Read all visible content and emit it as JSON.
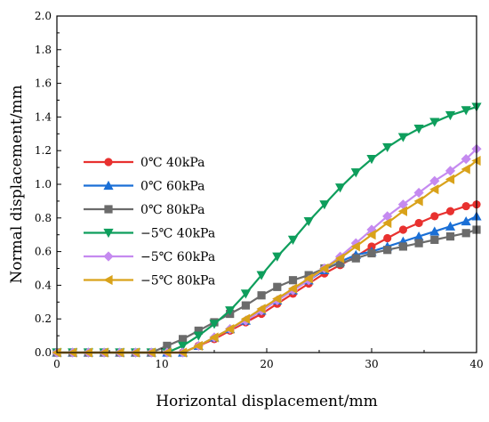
{
  "chart_data": {
    "type": "line",
    "title": "",
    "xlabel": "Horizontal displacement/mm",
    "ylabel": "Normal displacement/mm",
    "xlim": [
      0,
      40
    ],
    "ylim": [
      0,
      2.0
    ],
    "x_ticks": [
      "0",
      "10",
      "20",
      "30",
      "40"
    ],
    "y_ticks": [
      "0.0",
      "0.2",
      "0.4",
      "0.6",
      "0.8",
      "1.0",
      "1.2",
      "1.4",
      "1.6",
      "1.8",
      "2.0"
    ],
    "grid": false,
    "legend_position": "left-middle",
    "series": [
      {
        "name": "0℃ 40kPa",
        "color": "#e8312f",
        "marker": "circle",
        "x": [
          0,
          1.5,
          3,
          4.5,
          6,
          7.5,
          9,
          10.5,
          12,
          13.5,
          15,
          16.5,
          18,
          19.5,
          21,
          22.5,
          24,
          25.5,
          27,
          28.5,
          30,
          31.5,
          33,
          34.5,
          36,
          37.5,
          39,
          40
        ],
        "y": [
          0,
          0,
          0,
          0,
          0,
          0,
          0,
          0,
          0,
          0.04,
          0.08,
          0.13,
          0.18,
          0.23,
          0.29,
          0.35,
          0.41,
          0.47,
          0.52,
          0.57,
          0.63,
          0.68,
          0.73,
          0.77,
          0.81,
          0.84,
          0.87,
          0.88
        ]
      },
      {
        "name": "0℃ 60kPa",
        "color": "#1a6fd6",
        "marker": "triangle-up",
        "x": [
          0,
          1.5,
          3,
          4.5,
          6,
          7.5,
          9,
          10.5,
          12,
          13.5,
          15,
          16.5,
          18,
          19.5,
          21,
          22.5,
          24,
          25.5,
          27,
          28.5,
          30,
          31.5,
          33,
          34.5,
          36,
          37.5,
          39,
          40
        ],
        "y": [
          0,
          0,
          0,
          0,
          0,
          0,
          0,
          0,
          0,
          0.04,
          0.09,
          0.14,
          0.19,
          0.25,
          0.31,
          0.37,
          0.43,
          0.49,
          0.54,
          0.58,
          0.6,
          0.63,
          0.66,
          0.69,
          0.72,
          0.75,
          0.78,
          0.81
        ]
      },
      {
        "name": "0℃ 80kPa",
        "color": "#6b6b6b",
        "marker": "square",
        "x": [
          0,
          1.5,
          3,
          4.5,
          6,
          7.5,
          9,
          10.5,
          12,
          13.5,
          15,
          16.5,
          18,
          19.5,
          21,
          22.5,
          24,
          25.5,
          27,
          28.5,
          30,
          31.5,
          33,
          34.5,
          36,
          37.5,
          39,
          40
        ],
        "y": [
          0,
          0,
          0,
          0,
          0,
          0,
          0,
          0.04,
          0.08,
          0.13,
          0.18,
          0.23,
          0.28,
          0.34,
          0.39,
          0.43,
          0.46,
          0.5,
          0.53,
          0.56,
          0.59,
          0.61,
          0.63,
          0.65,
          0.67,
          0.69,
          0.71,
          0.73
        ]
      },
      {
        "name": "−5℃ 40kPa",
        "color": "#0e9e5c",
        "marker": "triangle-down",
        "x": [
          0,
          1.5,
          3,
          4.5,
          6,
          7.5,
          9,
          10.5,
          12,
          13.5,
          15,
          16.5,
          18,
          19.5,
          21,
          22.5,
          24,
          25.5,
          27,
          28.5,
          30,
          31.5,
          33,
          34.5,
          36,
          37.5,
          39,
          40
        ],
        "y": [
          0,
          0,
          0,
          0,
          0,
          0,
          0,
          0,
          0.04,
          0.1,
          0.17,
          0.25,
          0.35,
          0.46,
          0.57,
          0.67,
          0.78,
          0.88,
          0.98,
          1.07,
          1.15,
          1.22,
          1.28,
          1.33,
          1.37,
          1.41,
          1.44,
          1.46
        ]
      },
      {
        "name": "−5℃ 60kPa",
        "color": "#c58af0",
        "marker": "diamond",
        "x": [
          0,
          1.5,
          3,
          4.5,
          6,
          7.5,
          9,
          10.5,
          12,
          13.5,
          15,
          16.5,
          18,
          19.5,
          21,
          22.5,
          24,
          25.5,
          27,
          28.5,
          30,
          31.5,
          33,
          34.5,
          36,
          37.5,
          39,
          40
        ],
        "y": [
          0,
          0,
          0,
          0,
          0,
          0,
          0,
          0,
          0,
          0.04,
          0.09,
          0.14,
          0.19,
          0.25,
          0.31,
          0.37,
          0.43,
          0.5,
          0.57,
          0.65,
          0.73,
          0.81,
          0.88,
          0.95,
          1.02,
          1.08,
          1.15,
          1.21
        ]
      },
      {
        "name": "−5℃ 80kPa",
        "color": "#d9a21a",
        "marker": "triangle-left",
        "x": [
          0,
          1.5,
          3,
          4.5,
          6,
          7.5,
          9,
          10.5,
          12,
          13.5,
          15,
          16.5,
          18,
          19.5,
          21,
          22.5,
          24,
          25.5,
          27,
          28.5,
          30,
          31.5,
          33,
          34.5,
          36,
          37.5,
          39,
          40
        ],
        "y": [
          0,
          0,
          0,
          0,
          0,
          0,
          0,
          0,
          0,
          0.04,
          0.09,
          0.14,
          0.2,
          0.26,
          0.32,
          0.38,
          0.44,
          0.5,
          0.56,
          0.63,
          0.7,
          0.77,
          0.84,
          0.9,
          0.97,
          1.03,
          1.09,
          1.14
        ]
      }
    ]
  }
}
